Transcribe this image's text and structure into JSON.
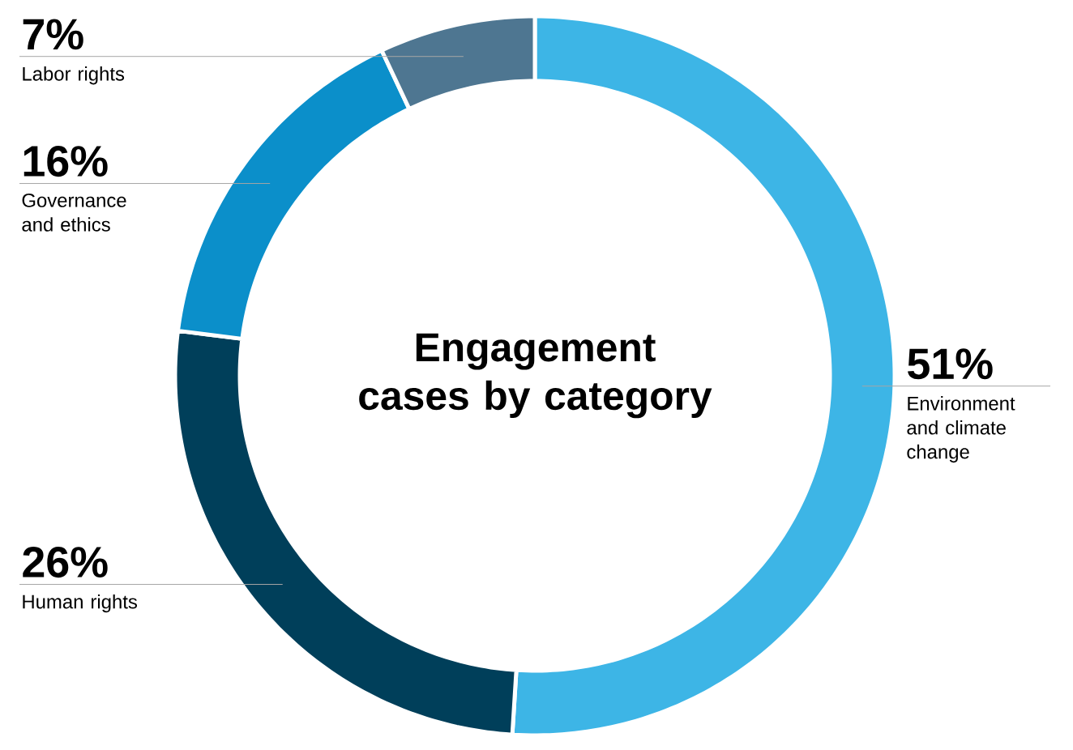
{
  "chart_data": {
    "type": "donut",
    "title": "Engagement cases by category",
    "categories": [
      "Environment and climate change",
      "Human rights",
      "Governance and ethics",
      "Labor rights"
    ],
    "values": [
      51,
      26,
      16,
      7
    ],
    "value_labels": [
      "51%",
      "26%",
      "16%",
      "7%"
    ],
    "colors": [
      "#3db5e6",
      "#003f5a",
      "#0b8fca",
      "#4e7691"
    ]
  }
}
